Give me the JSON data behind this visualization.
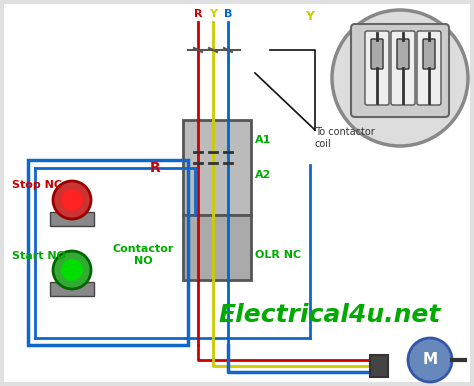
{
  "bg_color": "#e0e0e0",
  "watermark": "Electrical4u.net",
  "watermark_color": "#00aa00",
  "watermark_fontsize": 18,
  "phase_labels": [
    "R",
    "Y",
    "B"
  ],
  "phase_colors": [
    "#cc0000",
    "#cccc00",
    "#0066cc"
  ],
  "phase_label_y": "Y",
  "phase_label_y_color": "#cccc00",
  "R_label": "R",
  "R_label_color": "#cc0000",
  "stop_nc_label": "Stop NC",
  "stop_nc_color": "#cc0000",
  "start_no_label": "Start NO",
  "start_no_color": "#00aa00",
  "contactor_no_label": "Contactor\nNO",
  "contactor_no_color": "#00aa00",
  "olr_nc_label": "OLR NC",
  "olr_nc_color": "#00aa00",
  "a1_label": "A1",
  "a1_color": "#00aa00",
  "a2_label": "A2",
  "a2_color": "#00aa00",
  "to_contactor_label": "To contactor\ncoil",
  "to_contactor_color": "#333333",
  "wire_blue": "#1166cc",
  "wire_red": "#cc0000",
  "wire_yellow": "#cccc00",
  "wire_black": "#111111"
}
